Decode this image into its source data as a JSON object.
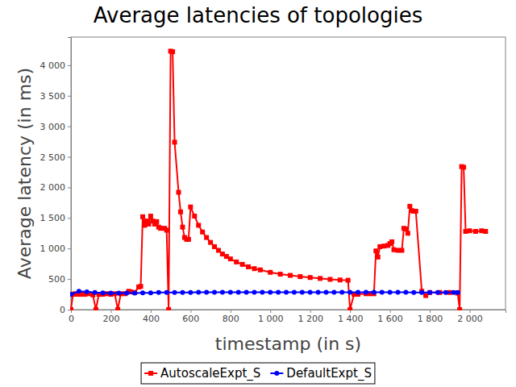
{
  "chart_data": {
    "type": "line",
    "title": "Average latencies of topologies",
    "x_label": "timestamp (in s)",
    "y_label": "Average latency (in ms)",
    "xlim": [
      0,
      2180
    ],
    "ylim": [
      0,
      4460
    ],
    "xticks": [
      0,
      200,
      400,
      600,
      800,
      {
        "value": 1000,
        "label": "1 000"
      },
      {
        "value": 1200,
        "label": "1 200"
      },
      {
        "value": 1400,
        "label": "1 400"
      },
      {
        "value": 1600,
        "label": "1 600"
      },
      {
        "value": 1800,
        "label": "1 800"
      },
      {
        "value": 2000,
        "label": "2 000"
      }
    ],
    "yticks": [
      0,
      500,
      {
        "value": 1000,
        "label": "1 000"
      },
      {
        "value": 1500,
        "label": "1 500"
      },
      {
        "value": 2000,
        "label": "2 000"
      },
      {
        "value": 2500,
        "label": "2 500"
      },
      {
        "value": 3000,
        "label": "3 000"
      },
      {
        "value": 3500,
        "label": "3 500"
      },
      {
        "value": 4000,
        "label": "4 000"
      }
    ],
    "grid": false,
    "legend": "bottom",
    "series": [
      {
        "name": "AutoscaleExpt_S",
        "color": "#ff0000",
        "marker": "square",
        "line_style": "solid",
        "x": [
          0,
          10,
          20,
          30,
          50,
          70,
          90,
          110,
          125,
          140,
          160,
          180,
          200,
          220,
          235,
          250,
          270,
          290,
          300,
          320,
          340,
          350,
          360,
          370,
          380,
          390,
          400,
          410,
          420,
          430,
          440,
          450,
          470,
          480,
          490,
          500,
          510,
          520,
          540,
          550,
          560,
          570,
          580,
          590,
          600,
          620,
          640,
          660,
          680,
          700,
          720,
          740,
          760,
          780,
          800,
          830,
          860,
          890,
          920,
          950,
          1000,
          1050,
          1100,
          1150,
          1200,
          1250,
          1300,
          1350,
          1390,
          1400,
          1420,
          1440,
          1480,
          1500,
          1520,
          1530,
          1540,
          1550,
          1570,
          1590,
          1600,
          1610,
          1620,
          1640,
          1660,
          1670,
          1680,
          1690,
          1700,
          1710,
          1720,
          1730,
          1760,
          1780,
          1800,
          1850,
          1900,
          1940,
          1950,
          1960,
          1970,
          1980,
          2000,
          2030,
          2060,
          2080
        ],
        "values": [
          0,
          250,
          260,
          250,
          250,
          250,
          260,
          240,
          0,
          250,
          250,
          260,
          250,
          260,
          0,
          260,
          260,
          300,
          290,
          280,
          370,
          380,
          1520,
          1380,
          1450,
          1400,
          1530,
          1450,
          1400,
          1440,
          1350,
          1330,
          1330,
          1300,
          0,
          4230,
          4220,
          2740,
          1920,
          1600,
          1350,
          1180,
          1150,
          1150,
          1680,
          1530,
          1380,
          1270,
          1180,
          1100,
          1030,
          970,
          910,
          870,
          830,
          780,
          740,
          700,
          670,
          650,
          610,
          580,
          560,
          540,
          525,
          510,
          495,
          485,
          480,
          0,
          250,
          250,
          260,
          260,
          260,
          960,
          860,
          1030,
          1040,
          1050,
          1080,
          1110,
          980,
          970,
          970,
          1330,
          1320,
          1250,
          1690,
          1620,
          1610,
          1610,
          300,
          230,
          280,
          280,
          280,
          270,
          0,
          2340,
          2330,
          1280,
          1290,
          1280,
          1290,
          1280
        ]
      },
      {
        "name": "DefaultExpt_S",
        "color": "#0000ff",
        "marker": "circle",
        "line_style": "solid",
        "x": [
          0,
          40,
          80,
          120,
          160,
          200,
          240,
          280,
          320,
          360,
          400,
          440,
          480,
          520,
          560,
          600,
          640,
          680,
          720,
          760,
          800,
          840,
          880,
          920,
          960,
          1000,
          1040,
          1080,
          1120,
          1160,
          1200,
          1240,
          1280,
          1320,
          1360,
          1400,
          1440,
          1480,
          1520,
          1560,
          1600,
          1640,
          1680,
          1720,
          1760,
          1800,
          1840,
          1880,
          1920,
          1940
        ],
        "values": [
          250,
          300,
          290,
          280,
          275,
          270,
          270,
          270,
          270,
          275,
          275,
          280,
          280,
          280,
          280,
          280,
          285,
          285,
          285,
          285,
          285,
          285,
          285,
          285,
          285,
          285,
          285,
          285,
          285,
          285,
          285,
          285,
          285,
          285,
          285,
          285,
          285,
          285,
          285,
          285,
          285,
          285,
          285,
          280,
          280,
          280,
          280,
          280,
          280,
          280
        ]
      }
    ]
  }
}
